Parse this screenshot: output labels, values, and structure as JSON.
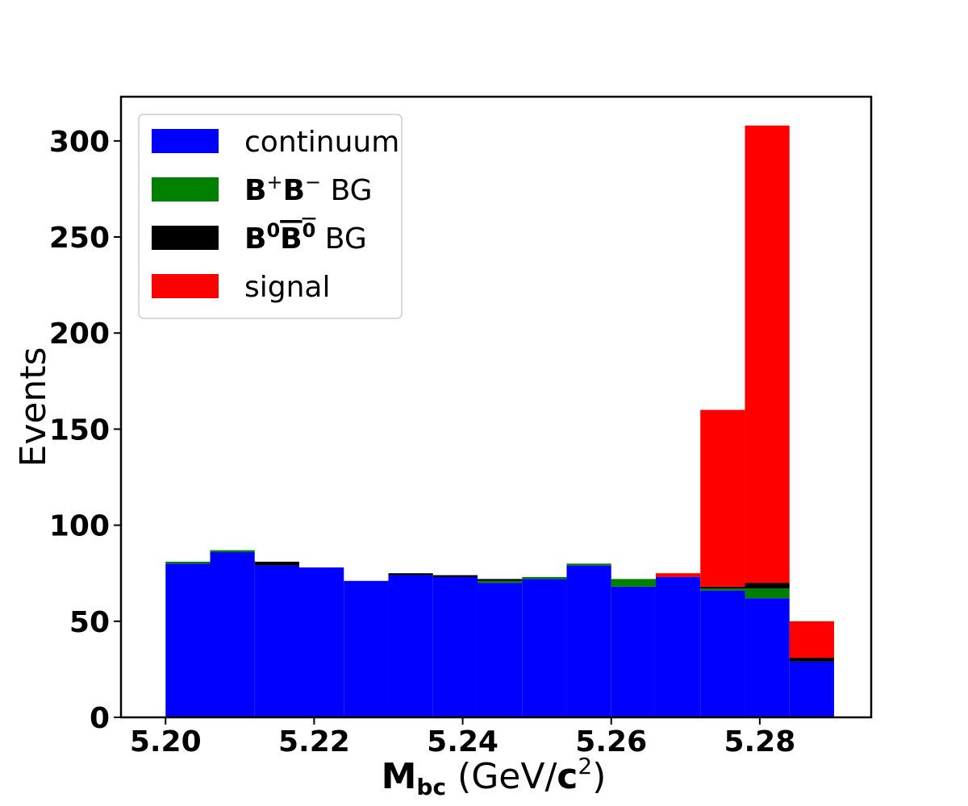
{
  "chart_data": {
    "type": "bar",
    "stacked": true,
    "bin_edges": [
      5.2,
      5.206,
      5.212,
      5.218,
      5.224,
      5.23,
      5.236,
      5.242,
      5.248,
      5.254,
      5.26,
      5.266,
      5.272,
      5.278,
      5.284,
      5.29
    ],
    "series": [
      {
        "name": "continuum",
        "color": "#0000ff",
        "values": [
          80,
          86,
          79,
          78,
          71,
          74,
          73,
          70,
          72,
          79,
          68,
          73,
          66,
          62,
          29
        ]
      },
      {
        "name": "B+B− BG",
        "color": "#008000",
        "values": [
          1,
          1,
          0,
          0,
          0,
          0,
          0,
          1,
          1,
          1,
          4,
          0,
          1,
          5,
          0
        ]
      },
      {
        "name": "B0B0bar BG",
        "color": "#000000",
        "values": [
          0,
          0,
          2,
          0,
          0,
          1,
          1,
          1,
          0,
          0,
          0,
          0,
          1,
          3,
          2
        ]
      },
      {
        "name": "signal",
        "color": "#ff0000",
        "values": [
          0,
          0,
          0,
          0,
          0,
          0,
          0,
          0,
          0,
          0,
          0,
          2,
          92,
          238,
          19
        ]
      }
    ],
    "xlim": [
      5.194,
      5.295
    ],
    "ylim": [
      0,
      323
    ],
    "xticks": [
      "5.20",
      "5.22",
      "5.24",
      "5.26",
      "5.28"
    ],
    "xtick_values": [
      5.2,
      5.22,
      5.24,
      5.26,
      5.28
    ],
    "yticks": [
      "0",
      "50",
      "100",
      "150",
      "200",
      "250",
      "300"
    ],
    "ytick_values": [
      0,
      50,
      100,
      150,
      200,
      250,
      300
    ],
    "xlabel": {
      "main": "M",
      "sub": "bc",
      "unit_open": " (GeV/",
      "unit_bold": "c",
      "unit_sup": "2",
      "unit_close": ")"
    },
    "ylabel": "Events",
    "legend_position": "top-left",
    "legend": [
      {
        "series": 0,
        "parts": [
          {
            "t": "continuum",
            "b": false
          }
        ]
      },
      {
        "series": 1,
        "parts": [
          {
            "t": "B",
            "b": true
          },
          {
            "t": "+",
            "b": false,
            "sup": true
          },
          {
            "t": "B",
            "b": true
          },
          {
            "t": "−",
            "b": false,
            "sup": true
          },
          {
            "t": " BG",
            "b": false
          }
        ]
      },
      {
        "series": 2,
        "parts": [
          {
            "t": "B",
            "b": true
          },
          {
            "t": "0",
            "b": true,
            "sup": true
          },
          {
            "t": "B",
            "b": true,
            "over": true
          },
          {
            "t": "0",
            "b": true,
            "sup": true,
            "over": true
          },
          {
            "t": " BG",
            "b": false
          }
        ]
      },
      {
        "series": 3,
        "parts": [
          {
            "t": "signal",
            "b": false
          }
        ]
      }
    ],
    "grid": false
  }
}
